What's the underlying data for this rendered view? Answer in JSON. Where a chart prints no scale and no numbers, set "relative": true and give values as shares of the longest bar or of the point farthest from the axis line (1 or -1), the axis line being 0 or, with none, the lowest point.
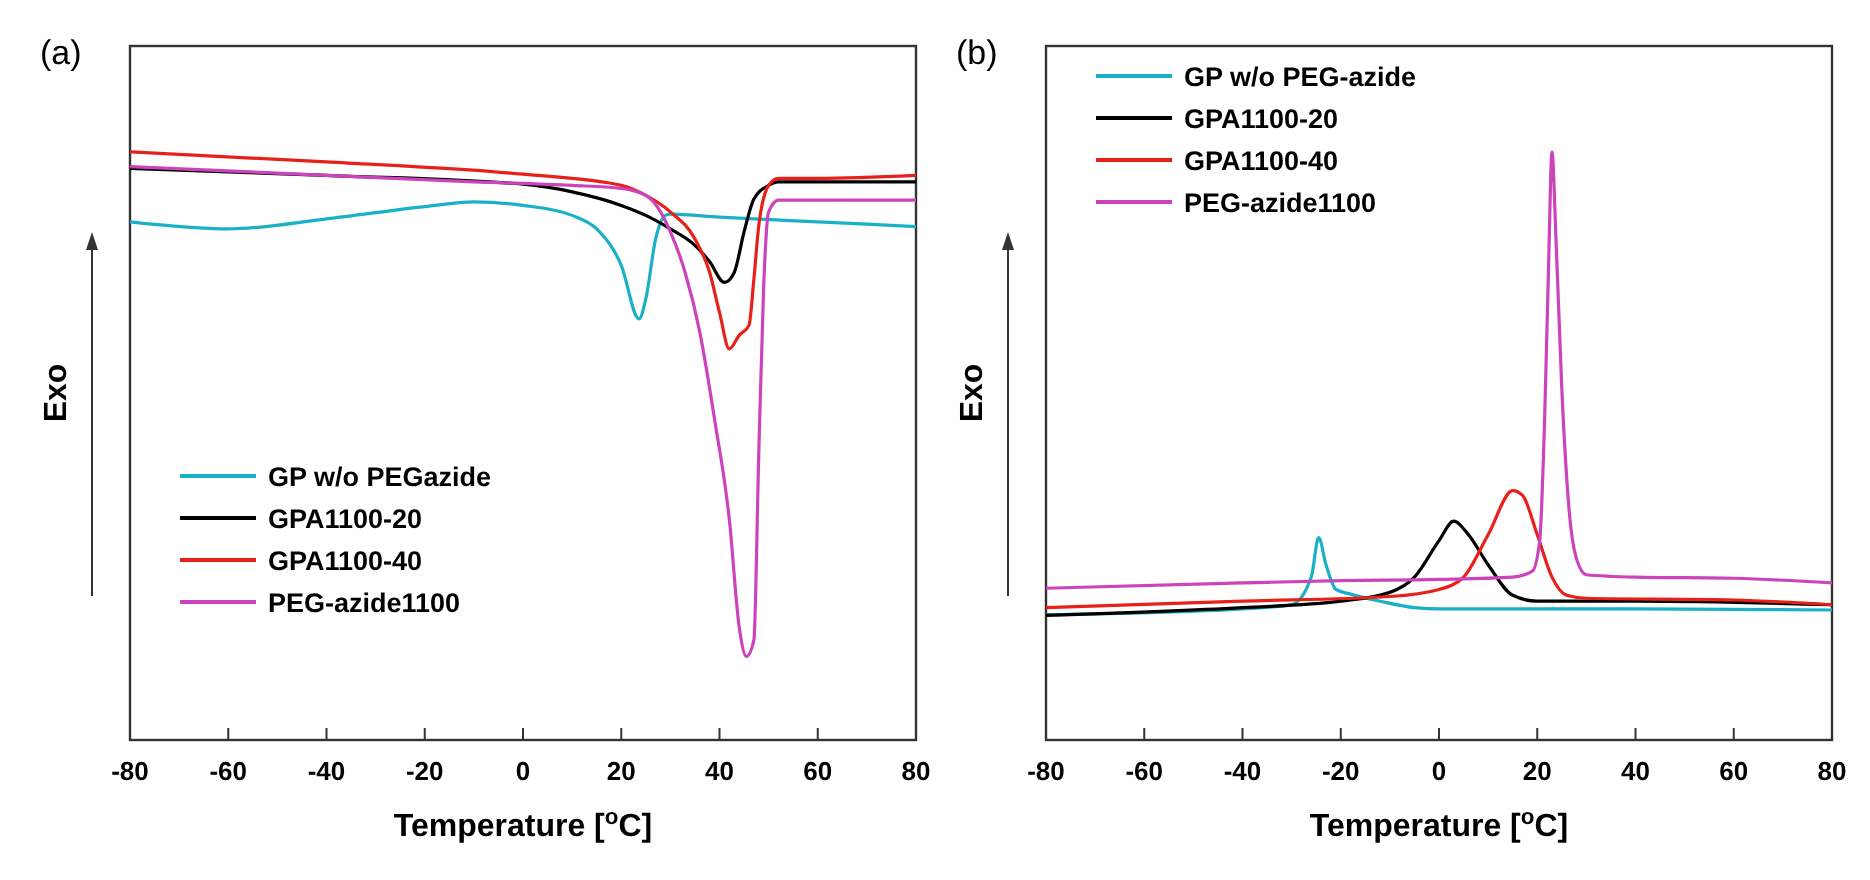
{
  "chart_data": [
    {
      "type": "line",
      "title": "(a)",
      "xlabel": "Temperature [$^{o}$C]",
      "ylabel": "Exo",
      "relative": true,
      "xlim": [
        -80,
        80
      ],
      "xticks": [
        -80,
        -60,
        -40,
        -20,
        0,
        20,
        40,
        60,
        80
      ],
      "tick_labels": "x",
      "legend": "left",
      "grid": false,
      "series": [
        {
          "name": "GP w/o PEGazide",
          "color": "#1ab0c8",
          "x": [
            -80,
            -60,
            -40,
            -20,
            -10,
            0,
            10,
            15,
            20,
            23.6,
            25,
            27,
            29,
            30,
            40,
            60,
            80
          ],
          "values": [
            0.881,
            0.869,
            0.886,
            0.907,
            0.915,
            0.909,
            0.892,
            0.869,
            0.807,
            0.716,
            0.75,
            0.852,
            0.892,
            0.894,
            0.889,
            0.881,
            0.873
          ]
        },
        {
          "name": "GPA1100-20",
          "color": "#000000",
          "x": [
            -80,
            -40,
            0,
            10,
            20,
            25,
            30,
            35,
            38,
            41,
            43,
            45,
            47,
            50,
            52,
            80
          ],
          "values": [
            0.972,
            0.96,
            0.945,
            0.932,
            0.909,
            0.892,
            0.869,
            0.841,
            0.813,
            0.778,
            0.795,
            0.864,
            0.92,
            0.943,
            0.949,
            0.949
          ]
        },
        {
          "name": "GPA1100-40",
          "color": "#e8201a",
          "x": [
            -80,
            -40,
            0,
            20,
            25,
            30,
            35,
            38,
            40,
            42,
            44,
            46,
            47,
            48,
            50,
            52,
            60,
            80
          ],
          "values": [
            1.0,
            0.983,
            0.962,
            0.943,
            0.926,
            0.898,
            0.852,
            0.795,
            0.727,
            0.665,
            0.688,
            0.705,
            0.784,
            0.875,
            0.943,
            0.955,
            0.955,
            0.96
          ]
        },
        {
          "name": "PEG-azide1100",
          "color": "#cc44bb",
          "x": [
            -80,
            -40,
            -10,
            10,
            20,
            25,
            28,
            30,
            33,
            36,
            39,
            42,
            44,
            45.5,
            47,
            48,
            49,
            50,
            52,
            60,
            80
          ],
          "values": [
            0.975,
            0.96,
            0.949,
            0.943,
            0.938,
            0.926,
            0.898,
            0.864,
            0.795,
            0.693,
            0.545,
            0.375,
            0.193,
            0.142,
            0.17,
            0.489,
            0.773,
            0.898,
            0.918,
            0.918,
            0.918
          ]
        }
      ]
    },
    {
      "type": "line",
      "title": "(b)",
      "xlabel": "Temperature [$^{o}$C]",
      "ylabel": "Exo",
      "relative": true,
      "xlim": [
        -80,
        80
      ],
      "xticks": [
        -80,
        -60,
        -40,
        -20,
        0,
        20,
        40,
        60,
        80
      ],
      "tick_labels": "x",
      "legend": "top left",
      "grid": false,
      "series": [
        {
          "name": "GP w/o PEG-azide",
          "color": "#1ab0c8",
          "x": [
            -80,
            -40,
            -30,
            -26,
            -24.5,
            -23,
            -21,
            -18,
            -12,
            -5,
            0,
            40,
            80
          ],
          "values": [
            0.213,
            0.223,
            0.23,
            0.277,
            0.344,
            0.298,
            0.256,
            0.248,
            0.236,
            0.225,
            0.223,
            0.223,
            0.221
          ]
        },
        {
          "name": "GPA1100-20",
          "color": "#000000",
          "x": [
            -80,
            -40,
            -20,
            -10,
            -5,
            0,
            3,
            6,
            10,
            15,
            20,
            40,
            80
          ],
          "values": [
            0.212,
            0.225,
            0.236,
            0.251,
            0.277,
            0.339,
            0.372,
            0.349,
            0.298,
            0.246,
            0.236,
            0.236,
            0.23
          ]
        },
        {
          "name": "GPA1100-40",
          "color": "#e8201a",
          "x": [
            -80,
            -40,
            -10,
            0,
            5,
            10,
            15,
            17,
            20,
            23,
            26,
            30,
            60,
            80
          ],
          "values": [
            0.225,
            0.236,
            0.244,
            0.256,
            0.277,
            0.349,
            0.424,
            0.416,
            0.349,
            0.277,
            0.246,
            0.241,
            0.238,
            0.23
          ]
        },
        {
          "name": "PEG-azide1100",
          "color": "#cc44bb",
          "x": [
            -80,
            -40,
            -20,
            0,
            15,
            19,
            20.5,
            21.5,
            22.3,
            23,
            23.8,
            25,
            26.5,
            28,
            30,
            40,
            60,
            80
          ],
          "values": [
            0.258,
            0.267,
            0.271,
            0.273,
            0.277,
            0.287,
            0.339,
            0.545,
            0.804,
            1.0,
            0.855,
            0.597,
            0.39,
            0.308,
            0.281,
            0.277,
            0.275,
            0.267
          ]
        }
      ]
    }
  ]
}
